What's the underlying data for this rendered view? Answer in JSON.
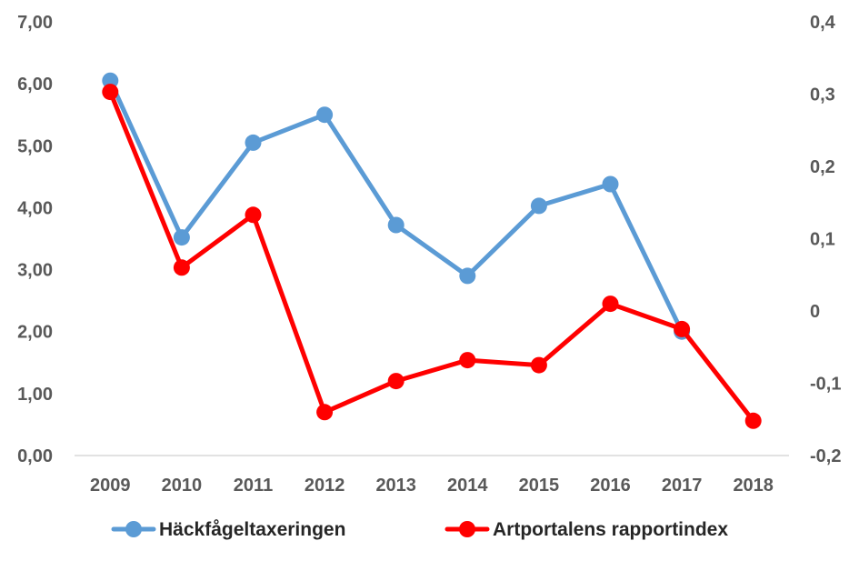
{
  "chart_data": {
    "type": "line",
    "categories": [
      "2009",
      "2010",
      "2011",
      "2012",
      "2013",
      "2014",
      "2015",
      "2016",
      "2017",
      "2018"
    ],
    "y_left": {
      "ylim": [
        0,
        7
      ],
      "ticks": [
        0,
        1,
        2,
        3,
        4,
        5,
        6,
        7
      ],
      "tick_labels": [
        "0,00",
        "1,00",
        "2,00",
        "3,00",
        "4,00",
        "5,00",
        "6,00",
        "7,00"
      ]
    },
    "y_right": {
      "ylim": [
        -0.2,
        0.4
      ],
      "ticks": [
        -0.2,
        -0.1,
        0,
        0.1,
        0.2,
        0.3,
        0.4
      ],
      "tick_labels": [
        "-0,2",
        "-0,1",
        "0",
        "0,1",
        "0,2",
        "0,3",
        "0,4"
      ]
    },
    "series": [
      {
        "name": "Häckfågeltaxeringen",
        "axis": "left",
        "color": "#5b9bd5",
        "values": [
          6.05,
          3.52,
          5.05,
          5.5,
          3.72,
          2.9,
          4.03,
          4.38,
          2.0,
          null
        ]
      },
      {
        "name": "Artportalens rapportindex",
        "axis": "right",
        "color": "#ff0000",
        "values": [
          0.303,
          0.06,
          0.133,
          -0.14,
          -0.097,
          -0.068,
          -0.075,
          0.01,
          -0.025,
          -0.152
        ]
      }
    ],
    "grid": false,
    "legend_position": "bottom"
  }
}
